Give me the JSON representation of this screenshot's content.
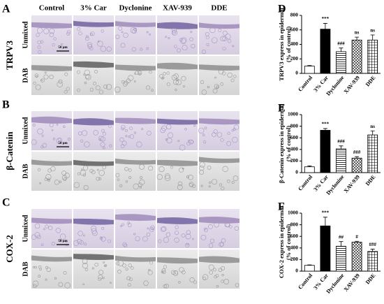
{
  "panels": {
    "letters": [
      "A",
      "B",
      "C"
    ],
    "markers": [
      "TRPV3",
      "β-Catenin",
      "COX-2"
    ],
    "stains": [
      "Unmixed",
      "DAB"
    ],
    "groups": [
      "Control",
      "3% Car",
      "Dyclonine",
      "XAV-939",
      "DDE"
    ],
    "scale_bar": "50 μm"
  },
  "chart_data": [
    {
      "type": "bar",
      "panel": "D",
      "ylabel": [
        "TRPV3 express in epidermal",
        "(% of control)"
      ],
      "categories": [
        "Control",
        "3% Car",
        "Dyclonine",
        "XAV-939",
        "DDE"
      ],
      "values": [
        100,
        610,
        300,
        460,
        460
      ],
      "errors": [
        8,
        80,
        50,
        40,
        70
      ],
      "annotations": [
        null,
        "***",
        "###",
        "ns",
        "ns"
      ],
      "fills": [
        "white",
        "black",
        "hlines",
        "crosshatch",
        "grid"
      ],
      "ylim": [
        0,
        800
      ],
      "yticks": [
        0,
        200,
        400,
        600,
        800
      ]
    },
    {
      "type": "bar",
      "panel": "E",
      "ylabel": [
        "β-Catenin express in epidermal",
        "(% of control)"
      ],
      "categories": [
        "Control",
        "3% Car",
        "Dyclonine",
        "XAV-939",
        "DDE"
      ],
      "values": [
        100,
        730,
        410,
        250,
        650
      ],
      "errors": [
        15,
        30,
        50,
        25,
        70
      ],
      "annotations": [
        null,
        "***",
        "###",
        "###",
        "ns"
      ],
      "fills": [
        "white",
        "black",
        "hlines",
        "crosshatch",
        "grid"
      ],
      "ylim": [
        0,
        1000
      ],
      "yticks": [
        0,
        200,
        400,
        600,
        800,
        1000
      ]
    },
    {
      "type": "bar",
      "panel": "F",
      "ylabel": [
        "COX-2 express in epidermal",
        "(% of control)"
      ],
      "categories": [
        "Control",
        "3% Car",
        "Dyclonine",
        "XAV-939",
        "DDE"
      ],
      "values": [
        100,
        780,
        430,
        500,
        340
      ],
      "errors": [
        8,
        150,
        80,
        15,
        40
      ],
      "annotations": [
        null,
        "***",
        "##",
        "#",
        "###"
      ],
      "fills": [
        "white",
        "black",
        "hlines",
        "crosshatch",
        "grid"
      ],
      "ylim": [
        0,
        1000
      ],
      "yticks": [
        0,
        200,
        400,
        600,
        800,
        1000
      ]
    }
  ]
}
